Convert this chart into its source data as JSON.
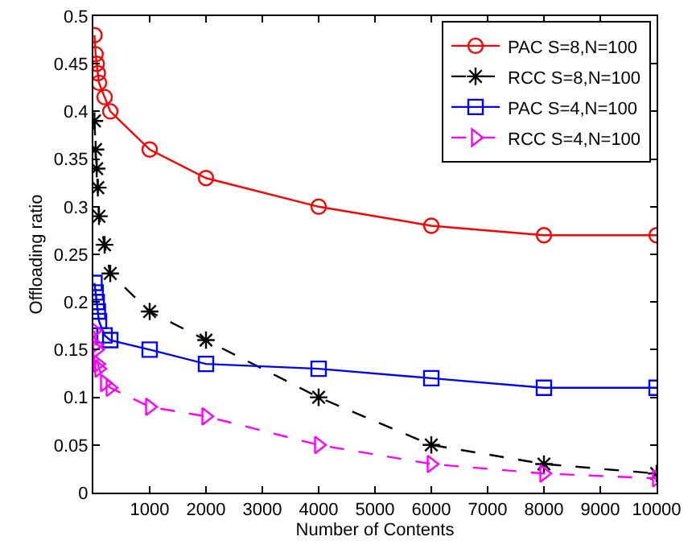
{
  "chart_data": {
    "type": "line",
    "xlabel": "Number of Contents",
    "ylabel": "Offloading ratio",
    "x": [
      20,
      40,
      60,
      80,
      100,
      200,
      300,
      1000,
      2000,
      4000,
      6000,
      8000,
      10000
    ],
    "series": [
      {
        "name": "PAC S=8,N=100",
        "color": "#ff0000",
        "marker": "circle",
        "line_style": "solid",
        "values": [
          0.48,
          0.46,
          0.45,
          0.44,
          0.43,
          0.415,
          0.4,
          0.36,
          0.33,
          0.3,
          0.28,
          0.27,
          0.27
        ]
      },
      {
        "name": "RCC S=8,N=100",
        "color": "#000000",
        "marker": "cross",
        "line_style": "dashed",
        "values": [
          0.39,
          0.36,
          0.34,
          0.32,
          0.29,
          0.26,
          0.23,
          0.19,
          0.16,
          0.1,
          0.05,
          0.03,
          0.02
        ]
      },
      {
        "name": "PAC S=4,N=100",
        "color": "#0000ff",
        "marker": "square",
        "line_style": "solid",
        "values": [
          0.22,
          0.21,
          0.2,
          0.19,
          0.18,
          0.165,
          0.16,
          0.15,
          0.135,
          0.13,
          0.12,
          0.11,
          0.11
        ]
      },
      {
        "name": "RCC S=4,N=100",
        "color": "#ff00ff",
        "marker": "triangle",
        "line_style": "dashed",
        "values": [
          0.17,
          0.155,
          0.15,
          0.135,
          0.13,
          0.115,
          0.11,
          0.09,
          0.08,
          0.05,
          0.03,
          0.02,
          0.015
        ]
      }
    ],
    "xlim": [
      0,
      10000
    ],
    "xticks": [
      1000,
      2000,
      3000,
      4000,
      5000,
      6000,
      7000,
      8000,
      9000,
      10000
    ],
    "ylim": [
      0,
      0.5
    ],
    "yticks": [
      0,
      0.05,
      0.1,
      0.15,
      0.2,
      0.25,
      0.3,
      0.35,
      0.4,
      0.45,
      0.5
    ],
    "grid": false,
    "legend": "top right"
  }
}
